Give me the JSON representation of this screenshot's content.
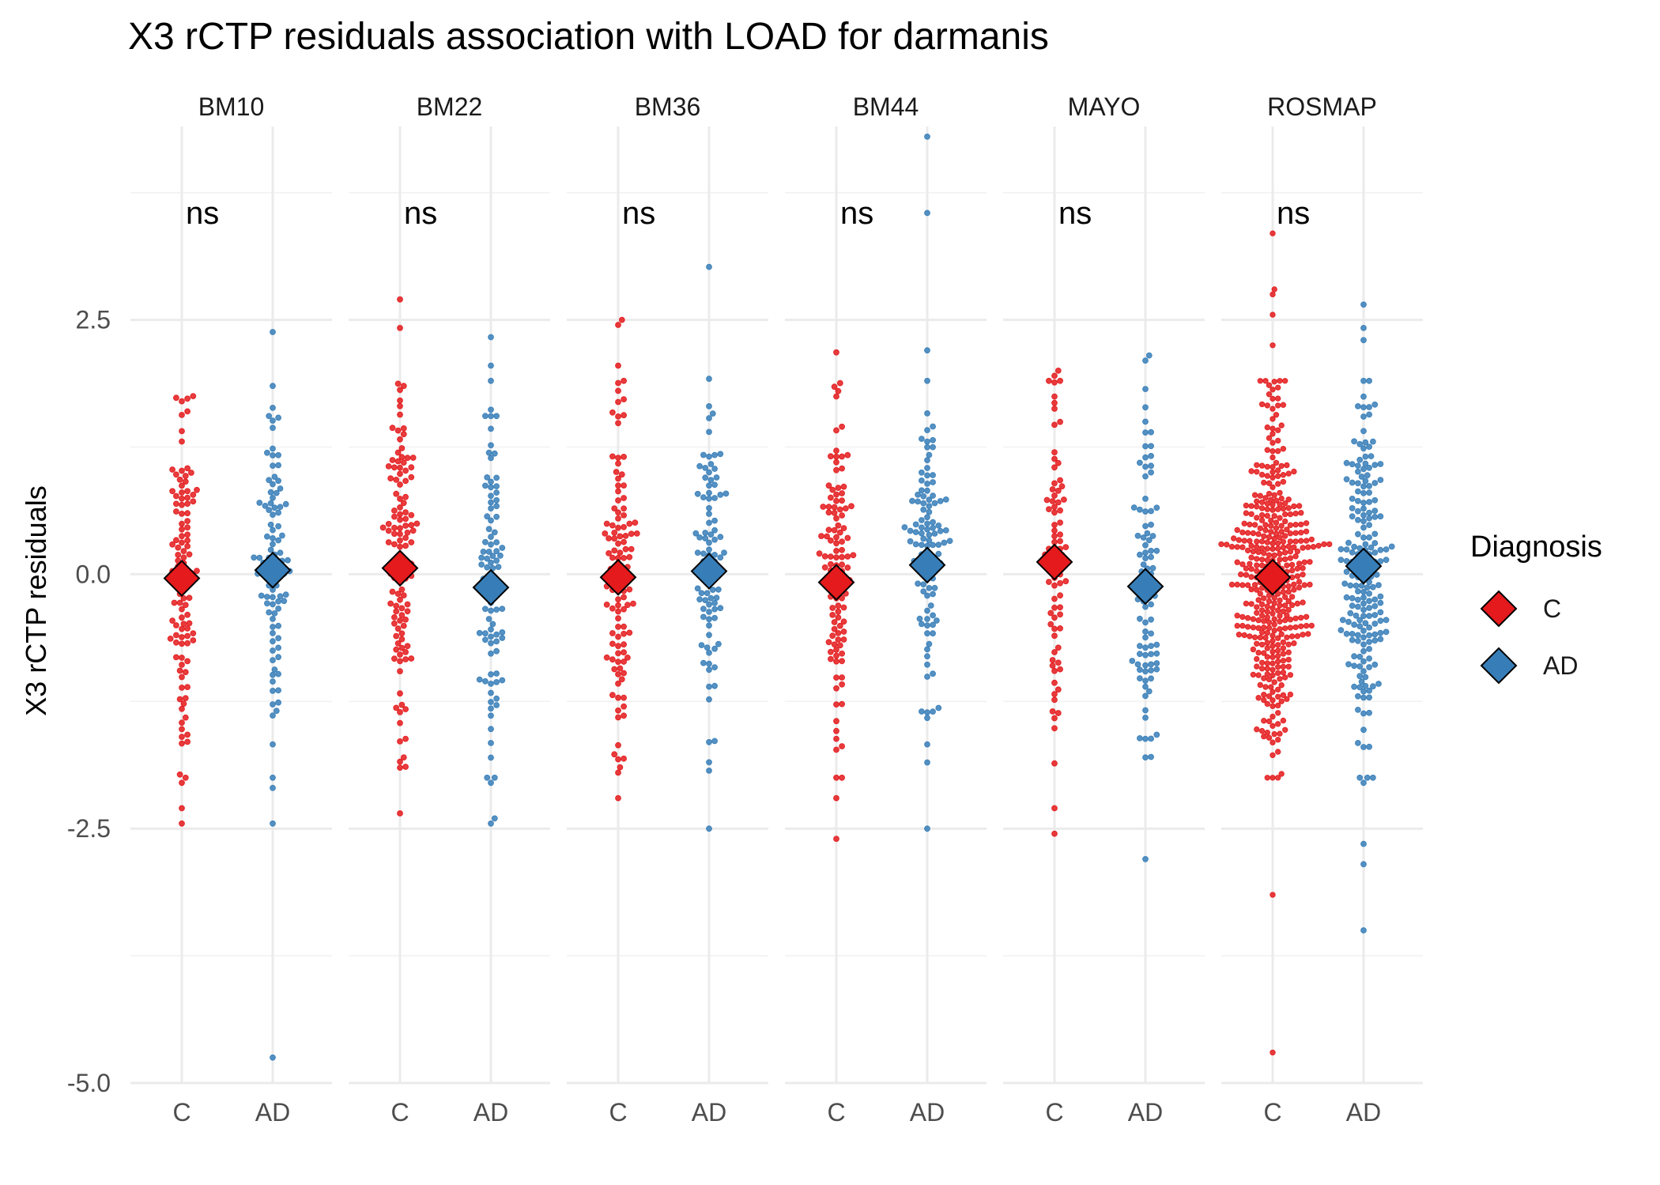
{
  "chart_data": {
    "type": "scatter",
    "style": "beeswarm-with-mean-diamond",
    "title": "X3 rCTP residuals association with LOAD for darmanis",
    "xlabel": "",
    "ylabel": "X3 rCTP residuals",
    "ylim": [
      -5.0,
      4.4
    ],
    "y_ticks": [
      -5.0,
      -2.5,
      0.0,
      2.5
    ],
    "y_tick_labels": [
      "-5.0",
      "-2.5",
      "0.0",
      "2.5"
    ],
    "categories": [
      "C",
      "AD"
    ],
    "grid": true,
    "legend": {
      "title": "Diagnosis",
      "position": "right",
      "entries": [
        {
          "label": "C",
          "color": "#E41A1C"
        },
        {
          "label": "AD",
          "color": "#377EB8"
        }
      ]
    },
    "colors": {
      "C": "#E41A1C",
      "AD": "#377EB8"
    },
    "panels": [
      {
        "name": "BM10",
        "annotation": "ns",
        "series": [
          {
            "name": "C",
            "mean": -0.04,
            "n": 110,
            "spread": 0.85,
            "extremes": [
              1.75,
              1.7,
              1.6,
              -2.05,
              -2.3,
              -2.45
            ]
          },
          {
            "name": "AD",
            "mean": 0.04,
            "n": 100,
            "spread": 0.8,
            "extremes": [
              2.38,
              1.85,
              -2.0,
              -2.1,
              -2.45,
              -4.75
            ]
          }
        ]
      },
      {
        "name": "BM22",
        "annotation": "ns",
        "series": [
          {
            "name": "C",
            "mean": 0.06,
            "n": 120,
            "spread": 0.85,
            "extremes": [
              2.7,
              2.42,
              1.85,
              -1.8,
              -2.35
            ]
          },
          {
            "name": "AD",
            "mean": -0.13,
            "n": 95,
            "spread": 0.85,
            "extremes": [
              2.33,
              2.05,
              -2.05,
              -2.4,
              -2.45
            ]
          }
        ]
      },
      {
        "name": "BM36",
        "annotation": "ns",
        "series": [
          {
            "name": "C",
            "mean": -0.03,
            "n": 115,
            "spread": 0.85,
            "extremes": [
              2.5,
              2.45,
              2.05,
              -1.95,
              -2.2
            ]
          },
          {
            "name": "AD",
            "mean": 0.03,
            "n": 90,
            "spread": 0.8,
            "extremes": [
              3.02,
              1.92,
              -1.65,
              -2.5
            ]
          }
        ]
      },
      {
        "name": "BM44",
        "annotation": "ns",
        "series": [
          {
            "name": "C",
            "mean": -0.08,
            "n": 115,
            "spread": 0.85,
            "extremes": [
              2.18,
              1.8,
              -2.2,
              -2.6
            ]
          },
          {
            "name": "AD",
            "mean": 0.09,
            "n": 110,
            "spread": 0.8,
            "extremes": [
              4.3,
              3.55,
              2.2,
              -1.85,
              -2.5
            ]
          }
        ]
      },
      {
        "name": "MAYO",
        "annotation": "ns",
        "series": [
          {
            "name": "C",
            "mean": 0.12,
            "n": 80,
            "spread": 0.9,
            "extremes": [
              2.0,
              1.95,
              -2.3,
              -2.55
            ]
          },
          {
            "name": "AD",
            "mean": -0.12,
            "n": 90,
            "spread": 0.8,
            "extremes": [
              2.15,
              2.1,
              1.82,
              -1.8,
              -2.8
            ]
          }
        ]
      },
      {
        "name": "ROSMAP",
        "annotation": "ns",
        "series": [
          {
            "name": "C",
            "mean": -0.03,
            "n": 420,
            "spread": 0.8,
            "extremes": [
              3.35,
              2.8,
              2.75,
              2.55,
              2.25,
              -3.15,
              -4.7
            ]
          },
          {
            "name": "AD",
            "mean": 0.08,
            "n": 200,
            "spread": 0.9,
            "extremes": [
              2.65,
              2.42,
              2.3,
              -2.05,
              -2.65,
              -2.85,
              -3.5
            ]
          }
        ]
      }
    ]
  }
}
